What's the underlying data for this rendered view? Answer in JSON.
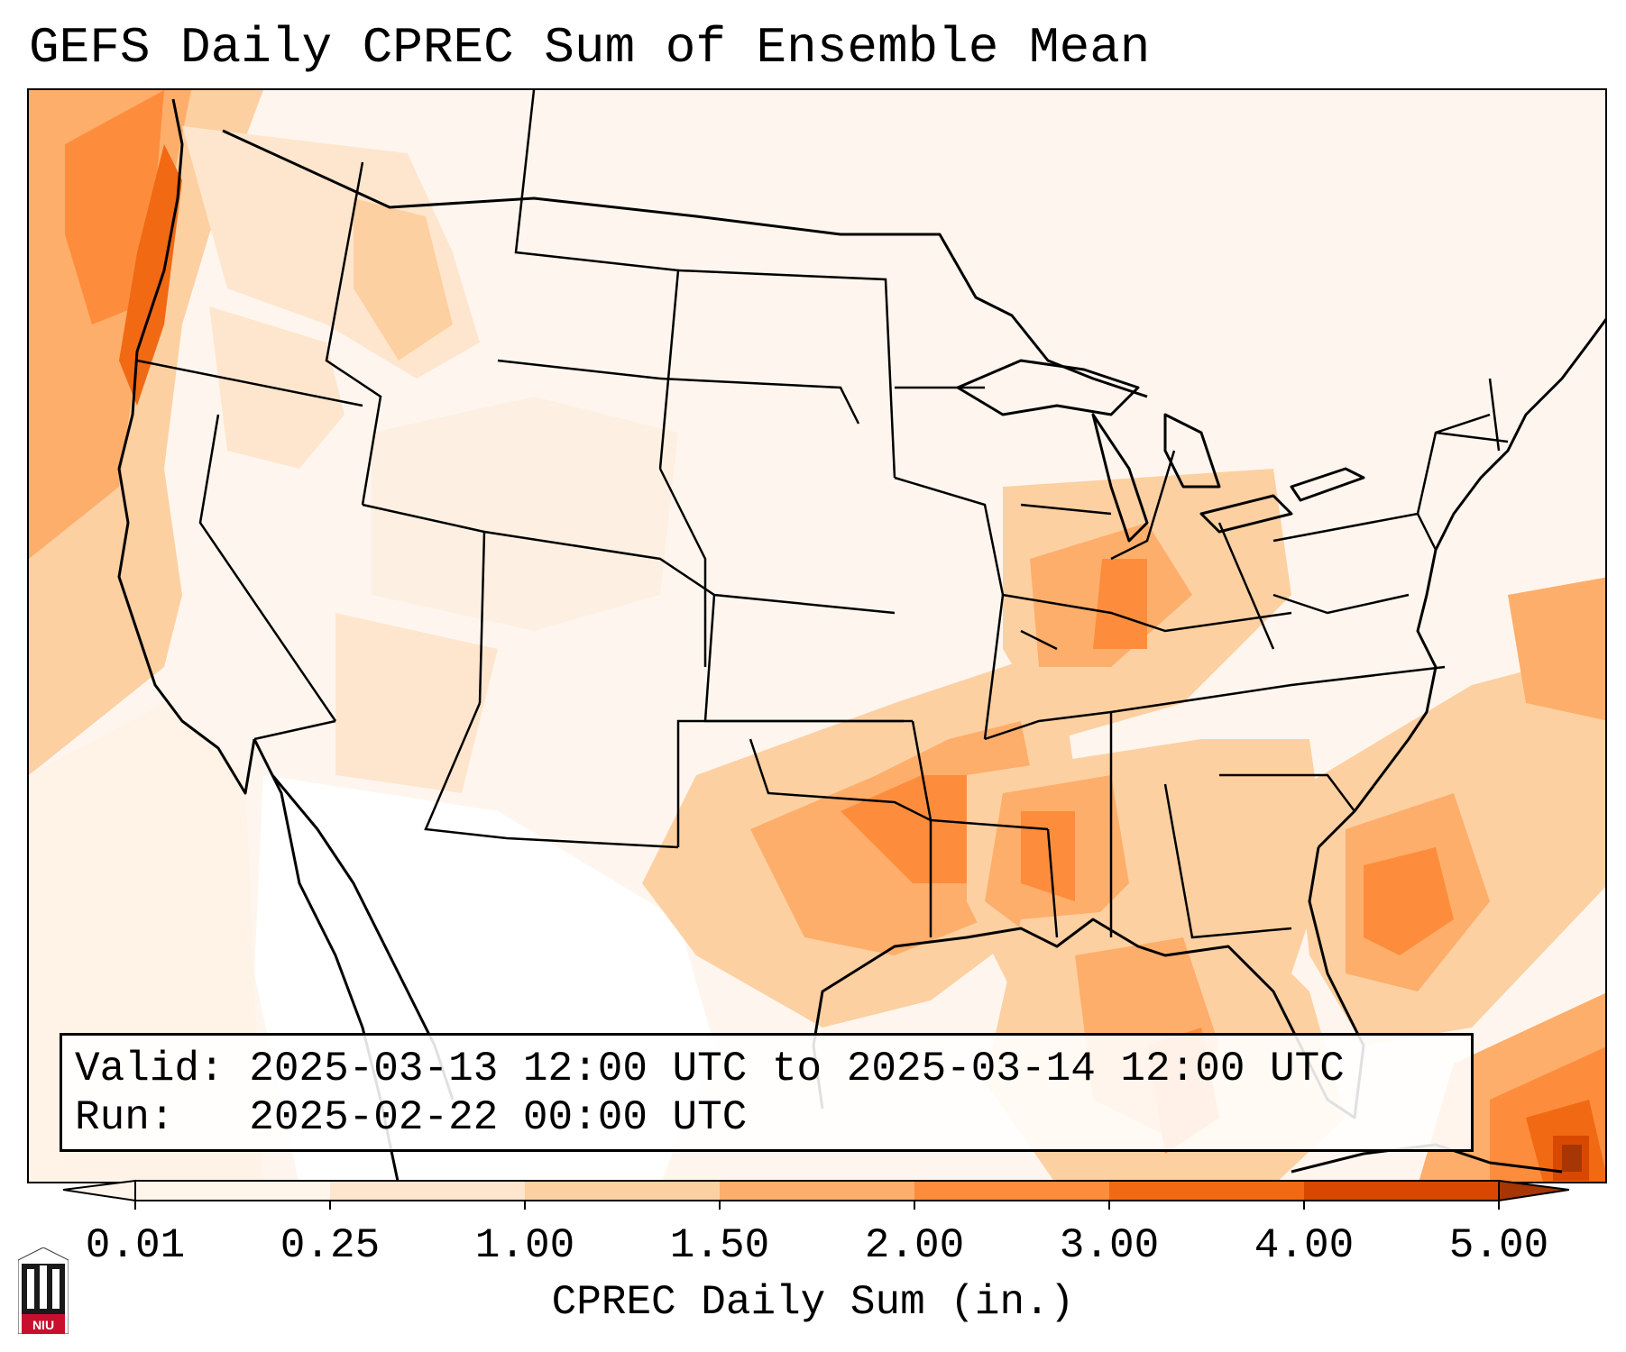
{
  "title": "GEFS Daily CPREC Sum of Ensemble Mean",
  "info": {
    "valid_label": "Valid:",
    "valid_value": "2025-03-13 12:00 UTC to 2025-03-14 12:00 UTC",
    "run_label": "Run:",
    "run_value": "2025-02-22 00:00 UTC"
  },
  "colorbar": {
    "label": "CPREC Daily Sum (in.)",
    "ticks": [
      "0.01",
      "0.25",
      "1.00",
      "1.50",
      "2.00",
      "3.00",
      "4.00",
      "5.00"
    ],
    "colors": [
      "#fff5eb",
      "#fee6ce",
      "#fdd0a2",
      "#fdae6b",
      "#fd8d3c",
      "#f16913",
      "#d94801",
      "#a63603"
    ],
    "extend": "both"
  },
  "logo": {
    "text": "NIU",
    "icon": "niu-castle-logo"
  },
  "colors": {
    "map_background": "#fef6ee",
    "borders": "#000000"
  }
}
